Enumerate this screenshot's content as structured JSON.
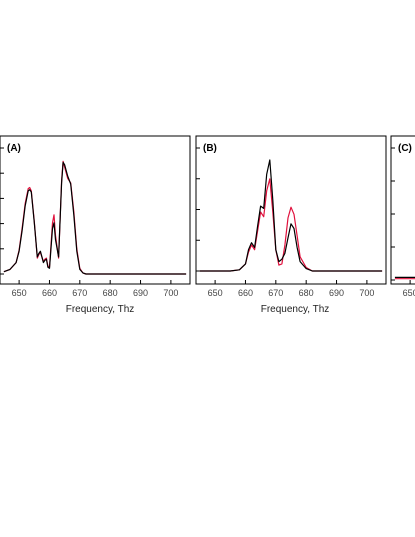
{
  "chart_data": [
    {
      "type": "line",
      "panel_label": "(A)",
      "xlabel": "Frequency, Thz",
      "xticks": [
        650,
        660,
        670,
        680,
        690,
        700
      ],
      "xlim": [
        645,
        705
      ],
      "ylim": [
        0,
        1.1
      ],
      "grid": false,
      "series": [
        {
          "color": "#000000",
          "x": [
            645,
            647,
            649,
            650,
            651,
            652,
            653,
            653.5,
            654,
            655,
            656,
            656.5,
            657,
            658,
            658.5,
            659,
            659.5,
            660,
            661,
            661.5,
            662,
            663,
            664,
            664.5,
            665,
            666,
            667,
            668,
            669,
            670,
            671,
            672,
            705
          ],
          "y": [
            0.02,
            0.04,
            0.1,
            0.2,
            0.38,
            0.6,
            0.73,
            0.74,
            0.72,
            0.45,
            0.15,
            0.18,
            0.2,
            0.1,
            0.12,
            0.13,
            0.06,
            0.05,
            0.4,
            0.45,
            0.3,
            0.15,
            0.8,
            0.98,
            0.96,
            0.86,
            0.79,
            0.52,
            0.2,
            0.04,
            0.01,
            0,
            0
          ]
        },
        {
          "color": "#e0103c",
          "x": [
            645,
            647,
            649,
            650,
            651,
            652,
            653,
            653.5,
            654,
            655,
            656,
            656.5,
            657,
            658,
            658.5,
            659,
            659.5,
            660,
            661,
            661.5,
            662,
            663,
            664,
            664.5,
            665,
            666,
            667,
            668,
            669,
            670,
            671,
            672,
            705
          ],
          "y": [
            0.02,
            0.04,
            0.1,
            0.21,
            0.4,
            0.62,
            0.75,
            0.76,
            0.73,
            0.46,
            0.14,
            0.17,
            0.19,
            0.11,
            0.13,
            0.14,
            0.07,
            0.06,
            0.45,
            0.52,
            0.34,
            0.14,
            0.82,
            0.99,
            0.94,
            0.84,
            0.8,
            0.55,
            0.22,
            0.05,
            0.01,
            0,
            0
          ]
        }
      ]
    },
    {
      "type": "line",
      "panel_label": "(B)",
      "xlabel": "Frequency, Thz",
      "xticks": [
        650,
        660,
        670,
        680,
        690,
        700
      ],
      "xlim": [
        645,
        705
      ],
      "ylim": [
        0,
        1.0
      ],
      "grid": false,
      "series": [
        {
          "color": "#000000",
          "x": [
            645,
            650,
            655,
            658,
            660,
            661,
            662,
            663,
            664,
            665,
            666,
            667,
            668,
            669,
            670,
            671,
            672,
            673,
            674,
            675,
            676,
            677,
            678,
            680,
            682,
            705
          ],
          "y": [
            0,
            0,
            0,
            0.01,
            0.06,
            0.18,
            0.24,
            0.2,
            0.38,
            0.55,
            0.53,
            0.82,
            0.94,
            0.6,
            0.18,
            0.08,
            0.1,
            0.15,
            0.28,
            0.4,
            0.36,
            0.2,
            0.08,
            0.02,
            0,
            0
          ]
        },
        {
          "color": "#e0103c",
          "x": [
            645,
            650,
            655,
            658,
            660,
            661,
            662,
            663,
            664,
            665,
            666,
            667,
            668,
            669,
            670,
            671,
            672,
            673,
            674,
            675,
            676,
            677,
            678,
            680,
            682,
            705
          ],
          "y": [
            0,
            0,
            0,
            0.01,
            0.06,
            0.16,
            0.22,
            0.18,
            0.34,
            0.5,
            0.46,
            0.68,
            0.78,
            0.5,
            0.18,
            0.05,
            0.06,
            0.22,
            0.45,
            0.54,
            0.48,
            0.3,
            0.12,
            0.03,
            0,
            0
          ]
        }
      ]
    },
    {
      "type": "line",
      "panel_label": "(C)",
      "xlabel": "",
      "xticks": [
        650
      ],
      "xlim": [
        645,
        705
      ],
      "ylim": [
        0,
        1.0
      ],
      "grid": false,
      "series": [
        {
          "color": "#000000",
          "x": [
            645,
            705
          ],
          "y": [
            0.02,
            0.02
          ]
        },
        {
          "color": "#e0103c",
          "x": [
            645,
            705
          ],
          "y": [
            0.01,
            0.01
          ]
        }
      ]
    }
  ]
}
